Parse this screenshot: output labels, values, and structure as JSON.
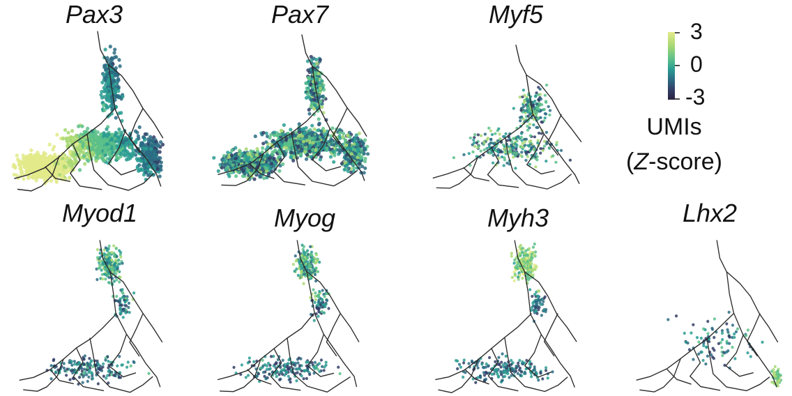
{
  "figure": {
    "panels": [
      {
        "id": "pax3",
        "gene": "Pax3",
        "density": "very-high",
        "expression": "high-left"
      },
      {
        "id": "pax7",
        "gene": "Pax7",
        "density": "very-high",
        "expression": "medium"
      },
      {
        "id": "myf5",
        "gene": "Myf5",
        "density": "medium",
        "expression": "medium"
      },
      {
        "id": "myod1",
        "gene": "Myod1",
        "density": "medium",
        "expression": "top"
      },
      {
        "id": "myog",
        "gene": "Myog",
        "density": "medium",
        "expression": "top"
      },
      {
        "id": "myh3",
        "gene": "Myh3",
        "density": "medium",
        "expression": "top-high"
      },
      {
        "id": "lhx2",
        "gene": "Lhx2",
        "density": "low",
        "expression": "bottom-right"
      }
    ],
    "colorbar": {
      "ticks": [
        "3",
        "0",
        "-3"
      ],
      "title_line1": "UMIs",
      "title_line2_prefix": "(",
      "title_line2_italic": "Z",
      "title_line2_suffix": "-score)",
      "colors": [
        "#e2ea8a",
        "#a8d873",
        "#5cc08a",
        "#2a9c92",
        "#2c6c84",
        "#323e66",
        "#2a2440"
      ]
    }
  }
}
